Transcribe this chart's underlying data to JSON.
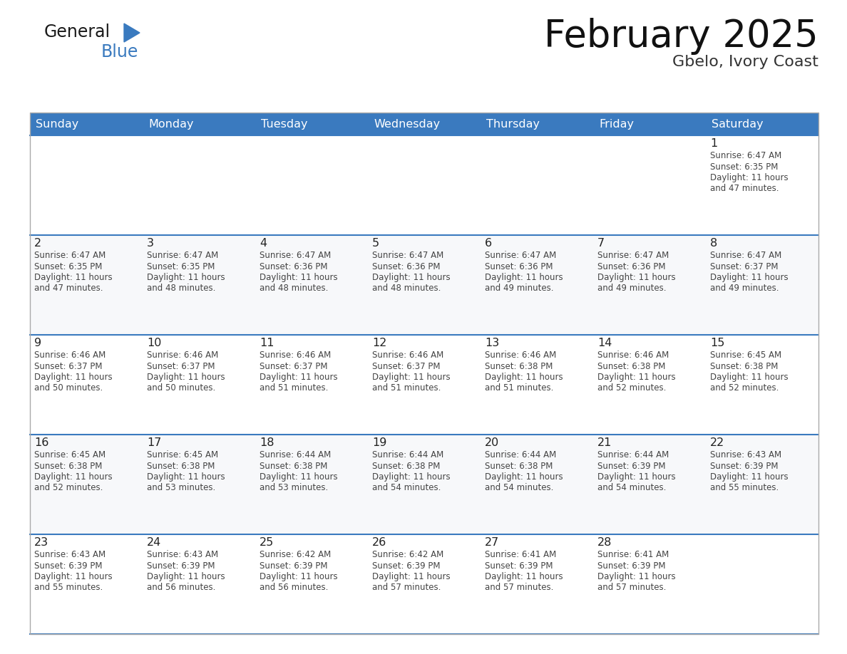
{
  "title": "February 2025",
  "subtitle": "Gbelo, Ivory Coast",
  "days_of_week": [
    "Sunday",
    "Monday",
    "Tuesday",
    "Wednesday",
    "Thursday",
    "Friday",
    "Saturday"
  ],
  "header_bg": "#3a7abf",
  "header_text": "#ffffff",
  "cell_bg": "#ffffff",
  "cell_bg_alt": "#f0f2f5",
  "divider_color": "#3a7abf",
  "border_color": "#cccccc",
  "text_color": "#333333",
  "calendar_data": [
    [
      null,
      null,
      null,
      null,
      null,
      null,
      {
        "day": 1,
        "sunrise": "6:47 AM",
        "sunset": "6:35 PM",
        "daylight_a": "11 hours",
        "daylight_b": "and 47 minutes."
      }
    ],
    [
      {
        "day": 2,
        "sunrise": "6:47 AM",
        "sunset": "6:35 PM",
        "daylight_a": "11 hours",
        "daylight_b": "and 47 minutes."
      },
      {
        "day": 3,
        "sunrise": "6:47 AM",
        "sunset": "6:35 PM",
        "daylight_a": "11 hours",
        "daylight_b": "and 48 minutes."
      },
      {
        "day": 4,
        "sunrise": "6:47 AM",
        "sunset": "6:36 PM",
        "daylight_a": "11 hours",
        "daylight_b": "and 48 minutes."
      },
      {
        "day": 5,
        "sunrise": "6:47 AM",
        "sunset": "6:36 PM",
        "daylight_a": "11 hours",
        "daylight_b": "and 48 minutes."
      },
      {
        "day": 6,
        "sunrise": "6:47 AM",
        "sunset": "6:36 PM",
        "daylight_a": "11 hours",
        "daylight_b": "and 49 minutes."
      },
      {
        "day": 7,
        "sunrise": "6:47 AM",
        "sunset": "6:36 PM",
        "daylight_a": "11 hours",
        "daylight_b": "and 49 minutes."
      },
      {
        "day": 8,
        "sunrise": "6:47 AM",
        "sunset": "6:37 PM",
        "daylight_a": "11 hours",
        "daylight_b": "and 49 minutes."
      }
    ],
    [
      {
        "day": 9,
        "sunrise": "6:46 AM",
        "sunset": "6:37 PM",
        "daylight_a": "11 hours",
        "daylight_b": "and 50 minutes."
      },
      {
        "day": 10,
        "sunrise": "6:46 AM",
        "sunset": "6:37 PM",
        "daylight_a": "11 hours",
        "daylight_b": "and 50 minutes."
      },
      {
        "day": 11,
        "sunrise": "6:46 AM",
        "sunset": "6:37 PM",
        "daylight_a": "11 hours",
        "daylight_b": "and 51 minutes."
      },
      {
        "day": 12,
        "sunrise": "6:46 AM",
        "sunset": "6:37 PM",
        "daylight_a": "11 hours",
        "daylight_b": "and 51 minutes."
      },
      {
        "day": 13,
        "sunrise": "6:46 AM",
        "sunset": "6:38 PM",
        "daylight_a": "11 hours",
        "daylight_b": "and 51 minutes."
      },
      {
        "day": 14,
        "sunrise": "6:46 AM",
        "sunset": "6:38 PM",
        "daylight_a": "11 hours",
        "daylight_b": "and 52 minutes."
      },
      {
        "day": 15,
        "sunrise": "6:45 AM",
        "sunset": "6:38 PM",
        "daylight_a": "11 hours",
        "daylight_b": "and 52 minutes."
      }
    ],
    [
      {
        "day": 16,
        "sunrise": "6:45 AM",
        "sunset": "6:38 PM",
        "daylight_a": "11 hours",
        "daylight_b": "and 52 minutes."
      },
      {
        "day": 17,
        "sunrise": "6:45 AM",
        "sunset": "6:38 PM",
        "daylight_a": "11 hours",
        "daylight_b": "and 53 minutes."
      },
      {
        "day": 18,
        "sunrise": "6:44 AM",
        "sunset": "6:38 PM",
        "daylight_a": "11 hours",
        "daylight_b": "and 53 minutes."
      },
      {
        "day": 19,
        "sunrise": "6:44 AM",
        "sunset": "6:38 PM",
        "daylight_a": "11 hours",
        "daylight_b": "and 54 minutes."
      },
      {
        "day": 20,
        "sunrise": "6:44 AM",
        "sunset": "6:38 PM",
        "daylight_a": "11 hours",
        "daylight_b": "and 54 minutes."
      },
      {
        "day": 21,
        "sunrise": "6:44 AM",
        "sunset": "6:39 PM",
        "daylight_a": "11 hours",
        "daylight_b": "and 54 minutes."
      },
      {
        "day": 22,
        "sunrise": "6:43 AM",
        "sunset": "6:39 PM",
        "daylight_a": "11 hours",
        "daylight_b": "and 55 minutes."
      }
    ],
    [
      {
        "day": 23,
        "sunrise": "6:43 AM",
        "sunset": "6:39 PM",
        "daylight_a": "11 hours",
        "daylight_b": "and 55 minutes."
      },
      {
        "day": 24,
        "sunrise": "6:43 AM",
        "sunset": "6:39 PM",
        "daylight_a": "11 hours",
        "daylight_b": "and 56 minutes."
      },
      {
        "day": 25,
        "sunrise": "6:42 AM",
        "sunset": "6:39 PM",
        "daylight_a": "11 hours",
        "daylight_b": "and 56 minutes."
      },
      {
        "day": 26,
        "sunrise": "6:42 AM",
        "sunset": "6:39 PM",
        "daylight_a": "11 hours",
        "daylight_b": "and 57 minutes."
      },
      {
        "day": 27,
        "sunrise": "6:41 AM",
        "sunset": "6:39 PM",
        "daylight_a": "11 hours",
        "daylight_b": "and 57 minutes."
      },
      {
        "day": 28,
        "sunrise": "6:41 AM",
        "sunset": "6:39 PM",
        "daylight_a": "11 hours",
        "daylight_b": "and 57 minutes."
      },
      null
    ]
  ]
}
